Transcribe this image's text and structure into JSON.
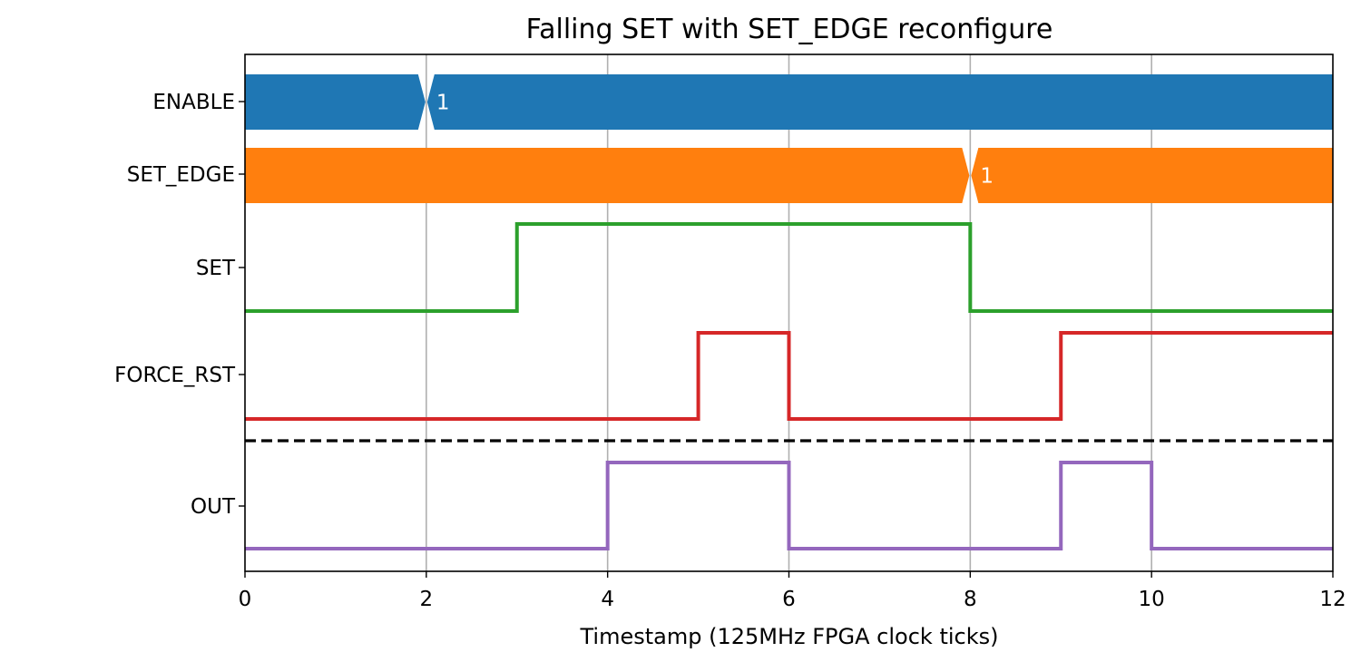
{
  "chart_data": {
    "type": "timing_diagram",
    "title": "Falling SET with SET_EDGE reconfigure",
    "xlabel": "Timestamp (125MHz FPGA clock ticks)",
    "xlim": [
      0,
      12
    ],
    "xticks": [
      0,
      2,
      4,
      6,
      8,
      10,
      12
    ],
    "xtick_labels": [
      "0",
      "2",
      "4",
      "6",
      "8",
      "10",
      "12"
    ],
    "vertical_grid": [
      2,
      4,
      6,
      8,
      10
    ],
    "separator": {
      "style": "dashed",
      "color": "#000000",
      "between": [
        "FORCE_RST",
        "OUT"
      ]
    },
    "signals": [
      {
        "name": "ENABLE",
        "kind": "bus",
        "color": "#1f77b4",
        "transitions": [
          {
            "x": 2,
            "value": "1"
          }
        ]
      },
      {
        "name": "SET_EDGE",
        "kind": "bus",
        "color": "#ff7f0e",
        "transitions": [
          {
            "x": 8,
            "value": "1"
          }
        ]
      },
      {
        "name": "SET",
        "kind": "digital",
        "color": "#2ca02c",
        "steps": [
          [
            0,
            0
          ],
          [
            3,
            1
          ],
          [
            8,
            0
          ],
          [
            12,
            0
          ]
        ]
      },
      {
        "name": "FORCE_RST",
        "kind": "digital",
        "color": "#d62728",
        "steps": [
          [
            0,
            0
          ],
          [
            5,
            1
          ],
          [
            6,
            0
          ],
          [
            9,
            1
          ],
          [
            12,
            1
          ]
        ]
      },
      {
        "name": "OUT",
        "kind": "digital",
        "color": "#9467bd",
        "steps": [
          [
            0,
            0
          ],
          [
            4,
            1
          ],
          [
            6,
            0
          ],
          [
            9,
            1
          ],
          [
            10,
            0
          ],
          [
            12,
            0
          ]
        ]
      }
    ]
  }
}
